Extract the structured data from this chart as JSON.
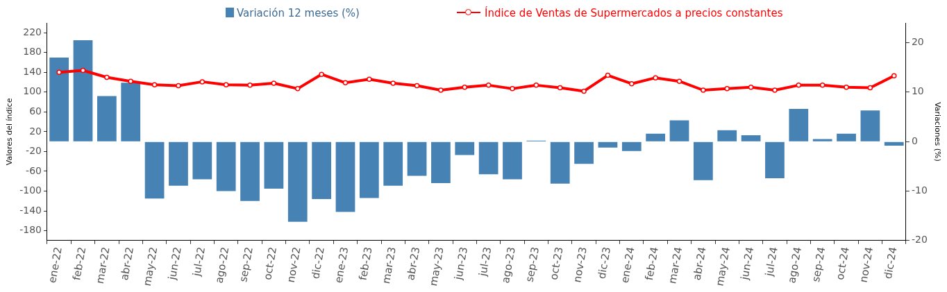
{
  "chart_data": {
    "type": "bar",
    "ylabel": "Valores del índice",
    "y2label": "Variaciones (%)",
    "categories": [
      "ene-22",
      "feb-22",
      "mar-22",
      "abr-22",
      "may-22",
      "jun-22",
      "jul-22",
      "ago-22",
      "sep-22",
      "oct-22",
      "nov-22",
      "dic-22",
      "ene-23",
      "feb-23",
      "mar-23",
      "abr-23",
      "may-23",
      "jun-23",
      "jul-23",
      "ago-23",
      "sep-23",
      "oct-23",
      "nov-23",
      "dic-23",
      "ene-24",
      "feb-24",
      "mar-24",
      "abr-24",
      "may-24",
      "jun-24",
      "jul-24",
      "ago-24",
      "sep-24",
      "oct-24",
      "nov-24",
      "dic-24"
    ],
    "series": [
      {
        "name": "Variación 12 meses (%)",
        "axis": "y2",
        "color": "#4682b4",
        "values": [
          17.0,
          20.5,
          9.2,
          11.9,
          -11.5,
          -8.9,
          -7.6,
          -10.0,
          -12.0,
          -9.5,
          -16.2,
          -11.6,
          -14.2,
          -11.4,
          -8.9,
          -6.9,
          -8.4,
          -2.7,
          -6.6,
          -7.6,
          0.2,
          -8.5,
          -4.5,
          -1.2,
          -1.9,
          1.6,
          4.3,
          -7.8,
          2.3,
          1.3,
          -7.4,
          6.6,
          0.5,
          1.6,
          6.3,
          -0.8
        ]
      },
      {
        "name": "Índice de Ventas de Supermercados a precios constantes",
        "type": "line",
        "axis": "y",
        "color": "#ff0000",
        "marker": "circle",
        "line_style": "solid",
        "values": [
          140,
          144,
          130,
          122,
          115,
          113,
          121,
          115,
          114,
          118,
          107,
          136,
          119,
          126,
          118,
          113,
          104,
          110,
          114,
          107,
          114,
          109,
          102,
          134,
          117,
          129,
          122,
          104,
          107,
          110,
          104,
          114,
          114,
          110,
          109,
          133
        ]
      }
    ],
    "ylim": [
      -200,
      240
    ],
    "yticks": [
      -180,
      -140,
      -100,
      -60,
      -20,
      20,
      60,
      100,
      140,
      180,
      220
    ],
    "y2lim": [
      -20,
      24
    ],
    "y2ticks": [
      -20,
      -10,
      0,
      10,
      20
    ],
    "grid": false,
    "legend": "top"
  }
}
